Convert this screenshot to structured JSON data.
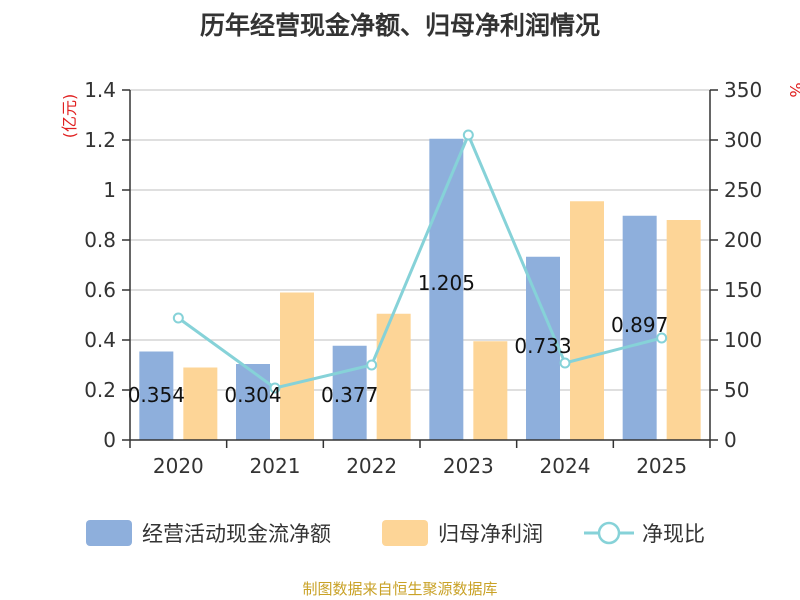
{
  "chart_data": {
    "type": "bar",
    "title": "历年经营现金净额、归母净利润情况",
    "categories": [
      "2020",
      "2021",
      "2022",
      "2023",
      "2024",
      "2025"
    ],
    "series": [
      {
        "name": "经营活动现金流净额",
        "type": "bar",
        "axis": "left",
        "color": "#8eafdc",
        "values": [
          0.354,
          0.304,
          0.377,
          1.205,
          0.733,
          0.897
        ]
      },
      {
        "name": "归母净利润",
        "type": "bar",
        "axis": "left",
        "color": "#fdd597",
        "values": [
          0.29,
          0.59,
          0.505,
          0.395,
          0.955,
          0.88
        ]
      },
      {
        "name": "净现比",
        "type": "line",
        "axis": "right",
        "color": "#86d2d8",
        "values": [
          122,
          52,
          75,
          305,
          77,
          102
        ]
      }
    ],
    "data_labels": [
      "0.354",
      "0.304",
      "0.377",
      "1.205",
      "0.733",
      "0.897"
    ],
    "y_left": {
      "label": "(亿元)",
      "ylim": [
        0,
        1.4
      ],
      "ticks": [
        "0",
        "0.2",
        "0.4",
        "0.6",
        "0.8",
        "1",
        "1.2",
        "1.4"
      ]
    },
    "y_right": {
      "label": "%",
      "ylim": [
        0,
        350
      ],
      "ticks": [
        "0",
        "50",
        "100",
        "150",
        "200",
        "250",
        "300",
        "350"
      ]
    },
    "grid": true,
    "legend_position": "bottom"
  },
  "source_text": "制图数据来自恒生聚源数据库"
}
